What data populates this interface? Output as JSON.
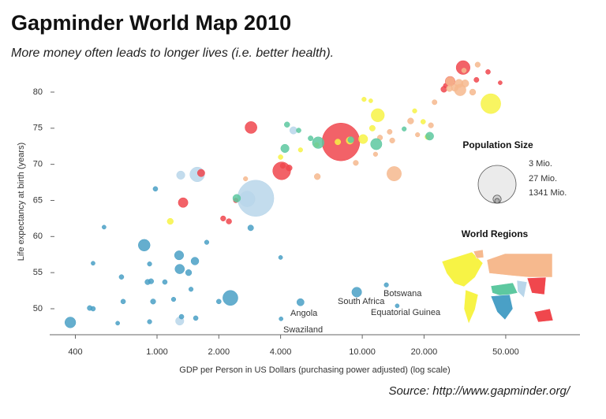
{
  "chart_data": {
    "type": "bubble",
    "title": "Gapminder World Map 2010",
    "subtitle": "More money often leads to longer lives (i.e. better health).",
    "x_label": "GDP per Person in US Dollars (purchasing power adjusted) (log scale)",
    "y_label": "Life expectancy at birth (years)",
    "source": "Source: http://www.gapminder.org/",
    "log_x": true,
    "xlim": [
      300,
      115000
    ],
    "xticks": [
      400,
      {
        "value": 1000,
        "label": "1.000"
      },
      {
        "value": 2000,
        "label": "2.000"
      },
      {
        "value": 4000,
        "label": "4.000"
      },
      {
        "value": 10000,
        "label": "10.000"
      },
      {
        "value": 20000,
        "label": "20.000"
      },
      {
        "value": 50000,
        "label": "50.000"
      }
    ],
    "ylim": [
      46.4,
      81.85
    ],
    "yticks": [
      50,
      55,
      60,
      65,
      70,
      75,
      80
    ],
    "series": [
      {
        "color": "#b9d6ea",
        "x": [
          3025,
          2750,
          1570,
          4620,
          1305,
          1290
        ],
        "values": [
          65.3,
          65.2,
          68.6,
          74.7,
          68.5,
          48.3
        ],
        "sizes": [
          1224,
          173,
          148,
          20,
          30,
          30
        ]
      },
      {
        "color": "#f0474d",
        "x": [
          7870,
          4050,
          2870,
          31000,
          26800,
          1340,
          1640,
          2100,
          2240,
          2420,
          36000,
          41000,
          47000,
          25500,
          25000,
          4400,
          4100
        ],
        "values": [
          73.1,
          69.1,
          75.1,
          83.4,
          81.5,
          64.7,
          68.8,
          62.5,
          62.1,
          65.0,
          81.7,
          82.8,
          81.3,
          80.9,
          80.4,
          69.5,
          69.8
        ],
        "sizes": [
          1338,
          240,
          87,
          127,
          49,
          48,
          20,
          5,
          6,
          3,
          4,
          3,
          1,
          3,
          10,
          10,
          5
        ]
      },
      {
        "color": "#f6b98e",
        "x": [
          14300,
          26800,
          29600,
          30000,
          31700,
          28200,
          34500,
          26600,
          17200,
          21600,
          14000,
          13600,
          12200,
          6040,
          2700,
          22500,
          36500,
          31300,
          18600,
          9300,
          11600
        ],
        "values": [
          68.7,
          81.5,
          81.2,
          80.3,
          81.2,
          80.6,
          80.0,
          80.5,
          76.0,
          75.4,
          73.3,
          74.5,
          73.7,
          68.3,
          68.0,
          78.6,
          83.8,
          83.0,
          74.1,
          70.2,
          71.4
        ],
        "sizes": [
          142,
          40,
          30,
          80,
          20,
          16,
          10,
          10,
          10,
          5,
          5,
          4,
          5,
          10,
          2,
          4,
          5,
          3,
          2,
          5,
          2
        ]
      },
      {
        "color": "#f7f345",
        "x": [
          42300,
          11900,
          10100,
          8700,
          7600,
          6000,
          20800,
          4000,
          11200,
          18000,
          1160,
          10200,
          11000,
          5000,
          19800
        ],
        "values": [
          78.4,
          76.8,
          73.5,
          73.3,
          73.1,
          72.7,
          73.8,
          71.0,
          75.0,
          77.4,
          62.1,
          79.0,
          78.8,
          72.0,
          75.9
        ],
        "sizes": [
          310,
          112,
          40,
          20,
          8,
          3,
          5,
          3,
          8,
          2,
          10,
          2,
          1,
          2,
          3
        ]
      },
      {
        "color": "#5dc8a0",
        "x": [
          6100,
          4200,
          11700,
          5600,
          4300,
          21300,
          2445,
          4900,
          16000,
          8800
        ],
        "values": [
          73.0,
          72.2,
          72.8,
          73.6,
          75.5,
          73.9,
          65.3,
          74.7,
          74.9,
          73.4
        ],
        "sizes": [
          81,
          30,
          75,
          4,
          6,
          27,
          24,
          3,
          2,
          10
        ]
      },
      {
        "color": "#4aa0c6",
        "x": [
          378,
          2277,
          866,
          1281,
          1530,
          1425,
          1290,
          900,
          935,
          1092,
          957,
          684,
          488,
          470,
          643,
          920,
          1316,
          1544,
          1204,
          1464,
          1746,
          920,
          671,
          488,
          552,
          982,
          2860,
          9400,
          13100,
          5000,
          14800,
          4020,
          4000,
          2000
        ],
        "values": [
          48.1,
          51.5,
          58.8,
          57.4,
          56.6,
          55.0,
          55.5,
          53.7,
          53.8,
          53.7,
          51.0,
          51.0,
          50.0,
          50.1,
          48.0,
          48.2,
          48.9,
          48.7,
          51.3,
          52.7,
          59.2,
          56.2,
          54.4,
          56.3,
          61.3,
          66.6,
          61.2,
          52.3,
          53.3,
          50.9,
          50.4,
          48.6,
          57.1,
          51.0
        ],
        "sizes": [
          66,
          158,
          83,
          40,
          24,
          10,
          45,
          6,
          5,
          3,
          5,
          3,
          3,
          4,
          1,
          2,
          3,
          3,
          2,
          2,
          2,
          2,
          3,
          1,
          1,
          3,
          8,
          50,
          2,
          19,
          1,
          1,
          1,
          3
        ]
      }
    ],
    "annotations": [
      "Botswana",
      "South Africa",
      "Angola",
      "Equatorial Guinea",
      "Swaziland"
    ],
    "size_legend": {
      "title": "Population Size",
      "sizes": [
        3,
        27,
        1341
      ],
      "value_labels": [
        "3 Mio.",
        "27 Mio.",
        "1341 Mio."
      ]
    },
    "region_legend": {
      "title": "World Regions"
    }
  }
}
